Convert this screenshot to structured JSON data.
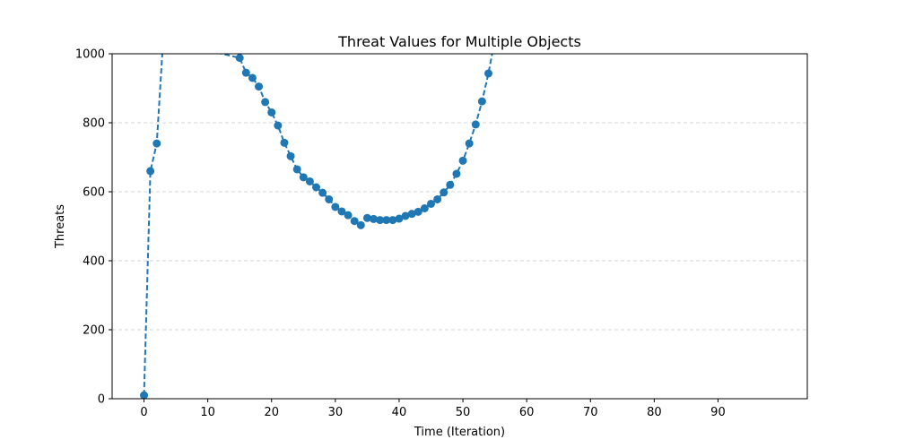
{
  "chart_data": {
    "type": "line",
    "title": "Threat Values for Multiple Objects",
    "xlabel": "Time (Iteration)",
    "ylabel": "Threats",
    "xlim": [
      -5,
      104
    ],
    "ylim": [
      0,
      1000
    ],
    "xticks": [
      0,
      10,
      20,
      30,
      40,
      50,
      60,
      70,
      80,
      90
    ],
    "yticks": [
      0,
      200,
      400,
      600,
      800,
      1000
    ],
    "grid": "horizontal dashed",
    "colors": {
      "series": "#1f77b4",
      "grid": "#c8c8c8"
    },
    "series": [
      {
        "marker": "circle",
        "linestyle": "dashed",
        "points": [
          {
            "x": 0,
            "y": 10
          },
          {
            "x": 1,
            "y": 660
          },
          {
            "x": 2,
            "y": 740
          },
          {
            "x": 3,
            "y": 1040
          },
          {
            "x": 15,
            "y": 988
          },
          {
            "x": 16,
            "y": 945
          },
          {
            "x": 17,
            "y": 930
          },
          {
            "x": 18,
            "y": 905
          },
          {
            "x": 19,
            "y": 860
          },
          {
            "x": 20,
            "y": 830
          },
          {
            "x": 21,
            "y": 792
          },
          {
            "x": 22,
            "y": 742
          },
          {
            "x": 23,
            "y": 703
          },
          {
            "x": 24,
            "y": 665
          },
          {
            "x": 25,
            "y": 642
          },
          {
            "x": 26,
            "y": 630
          },
          {
            "x": 27,
            "y": 613
          },
          {
            "x": 28,
            "y": 597
          },
          {
            "x": 29,
            "y": 578
          },
          {
            "x": 30,
            "y": 556
          },
          {
            "x": 31,
            "y": 543
          },
          {
            "x": 32,
            "y": 532
          },
          {
            "x": 33,
            "y": 515
          },
          {
            "x": 34,
            "y": 503
          },
          {
            "x": 35,
            "y": 524
          },
          {
            "x": 36,
            "y": 521
          },
          {
            "x": 37,
            "y": 518
          },
          {
            "x": 38,
            "y": 518
          },
          {
            "x": 39,
            "y": 518
          },
          {
            "x": 40,
            "y": 522
          },
          {
            "x": 41,
            "y": 530
          },
          {
            "x": 42,
            "y": 536
          },
          {
            "x": 43,
            "y": 542
          },
          {
            "x": 44,
            "y": 552
          },
          {
            "x": 45,
            "y": 565
          },
          {
            "x": 46,
            "y": 578
          },
          {
            "x": 47,
            "y": 598
          },
          {
            "x": 48,
            "y": 620
          },
          {
            "x": 49,
            "y": 652
          },
          {
            "x": 50,
            "y": 690
          },
          {
            "x": 51,
            "y": 740
          },
          {
            "x": 52,
            "y": 795
          },
          {
            "x": 53,
            "y": 862
          },
          {
            "x": 54,
            "y": 943
          },
          {
            "x": 55,
            "y": 1040
          }
        ]
      }
    ]
  }
}
